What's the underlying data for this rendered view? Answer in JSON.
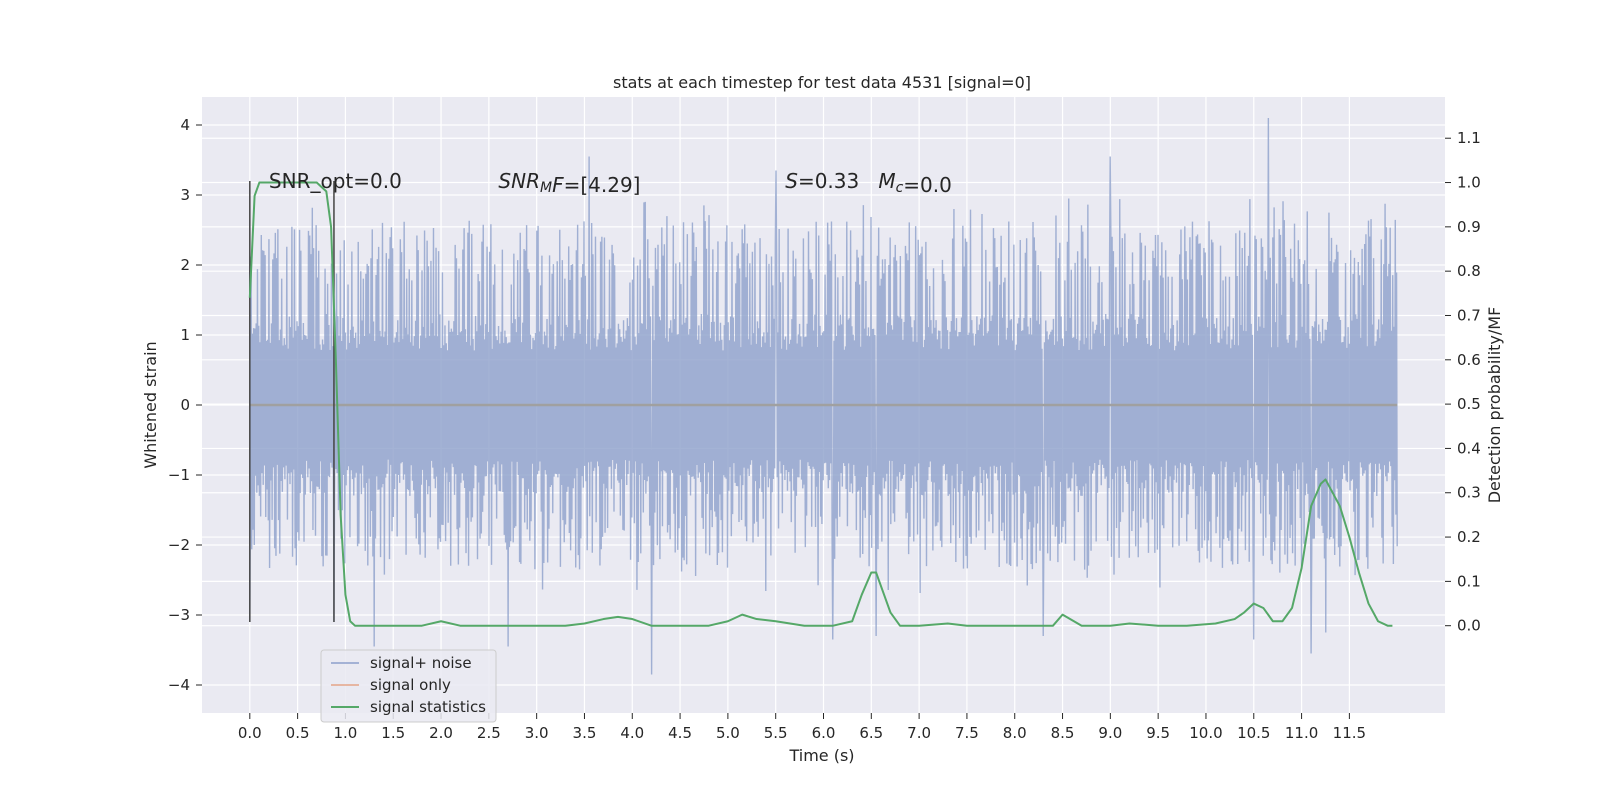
{
  "chart_data": {
    "type": "line",
    "title": "stats at each timestep for test data 4531 [signal=0]",
    "xlabel": "Time (s)",
    "ylabel_left": "Whitened strain",
    "ylabel_right": "Detection probability/MF",
    "xlim": [
      -0.5,
      12.5
    ],
    "ylim_left": [
      -4.4,
      4.4
    ],
    "ylim_right": [
      -0.197,
      1.193
    ],
    "x_ticks": [
      0.0,
      0.5,
      1.0,
      1.5,
      2.0,
      2.5,
      3.0,
      3.5,
      4.0,
      4.5,
      5.0,
      5.5,
      6.0,
      6.5,
      7.0,
      7.5,
      8.0,
      8.5,
      9.0,
      9.5,
      10.0,
      10.5,
      11.0,
      11.5
    ],
    "x_tick_labels": [
      "0.0",
      "0.5",
      "1.0",
      "1.5",
      "2.0",
      "2.5",
      "3.0",
      "3.5",
      "4.0",
      "4.5",
      "5.0",
      "5.5",
      "6.0",
      "6.5",
      "7.0",
      "7.5",
      "8.0",
      "8.5",
      "9.0",
      "9.5",
      "10.0",
      "10.5",
      "11.0",
      "11.5"
    ],
    "y_left_ticks": [
      -4,
      -3,
      -2,
      -1,
      0,
      1,
      2,
      3,
      4
    ],
    "y_left_tick_labels": [
      "−4",
      "−3",
      "−2",
      "−1",
      "0",
      "1",
      "2",
      "3",
      "4"
    ],
    "y_right_ticks": [
      0.0,
      0.1,
      0.2,
      0.3,
      0.4,
      0.5,
      0.6,
      0.7,
      0.8,
      0.9,
      1.0,
      1.1
    ],
    "y_right_tick_labels": [
      "0.0",
      "0.1",
      "0.2",
      "0.3",
      "0.4",
      "0.5",
      "0.6",
      "0.7",
      "0.8",
      "0.9",
      "1.0",
      "1.1"
    ],
    "grid": true,
    "legend_position": "lower-left",
    "series": [
      {
        "name": "signal+ noise",
        "axis": "left",
        "color": "#8da0cb",
        "x_range": [
          0.0,
          12.0
        ],
        "samples": 1800,
        "envelope": {
          "core_amplitude": 1.3,
          "typical_peak_high": [
            1.7,
            2.8
          ],
          "typical_peak_low": [
            -1.5,
            -2.5
          ],
          "max": 4.1,
          "min": -3.85
        },
        "notable_spikes": [
          {
            "x": 0.0,
            "y": -3.1
          },
          {
            "x": 0.88,
            "y": -3.1
          },
          {
            "x": 1.3,
            "y": -3.45
          },
          {
            "x": 2.7,
            "y": -3.45
          },
          {
            "x": 3.55,
            "y": 3.55
          },
          {
            "x": 4.2,
            "y": -3.85
          },
          {
            "x": 5.5,
            "y": 3.35
          },
          {
            "x": 6.1,
            "y": -3.35
          },
          {
            "x": 6.55,
            "y": -3.3
          },
          {
            "x": 8.3,
            "y": -3.3
          },
          {
            "x": 9.0,
            "y": 3.55
          },
          {
            "x": 10.5,
            "y": -3.35
          },
          {
            "x": 10.65,
            "y": 4.1
          },
          {
            "x": 11.1,
            "y": -3.55
          },
          {
            "x": 11.25,
            "y": -3.25
          }
        ]
      },
      {
        "name": "signal only",
        "axis": "left",
        "color": "#e5a588",
        "x": [
          0.0,
          12.0
        ],
        "y": [
          0.0,
          0.0
        ]
      },
      {
        "name": "signal statistics",
        "axis": "right",
        "color": "#55a868",
        "x": [
          0.0,
          0.05,
          0.1,
          0.15,
          0.2,
          0.3,
          0.4,
          0.5,
          0.6,
          0.7,
          0.75,
          0.8,
          0.85,
          0.9,
          0.95,
          1.0,
          1.05,
          1.1,
          1.2,
          1.5,
          1.8,
          2.0,
          2.2,
          2.5,
          3.0,
          3.3,
          3.5,
          3.7,
          3.85,
          4.0,
          4.2,
          4.5,
          4.8,
          5.0,
          5.15,
          5.3,
          5.5,
          5.8,
          6.1,
          6.3,
          6.4,
          6.5,
          6.55,
          6.6,
          6.7,
          6.8,
          6.9,
          7.0,
          7.3,
          7.5,
          8.0,
          8.4,
          8.5,
          8.7,
          9.0,
          9.2,
          9.5,
          9.8,
          10.1,
          10.3,
          10.4,
          10.5,
          10.6,
          10.7,
          10.8,
          10.9,
          11.0,
          11.1,
          11.2,
          11.25,
          11.3,
          11.4,
          11.5,
          11.6,
          11.7,
          11.8,
          11.9,
          11.95
        ],
        "y": [
          0.74,
          0.97,
          1.0,
          1.0,
          1.0,
          1.0,
          1.0,
          1.0,
          1.0,
          1.0,
          0.99,
          0.98,
          0.9,
          0.6,
          0.25,
          0.07,
          0.01,
          0.0,
          0.0,
          0.0,
          0.0,
          0.01,
          0.0,
          0.0,
          0.0,
          0.0,
          0.005,
          0.015,
          0.02,
          0.015,
          0.0,
          0.0,
          0.0,
          0.01,
          0.025,
          0.015,
          0.01,
          0.0,
          0.0,
          0.01,
          0.07,
          0.12,
          0.12,
          0.09,
          0.03,
          0.0,
          0.0,
          0.0,
          0.005,
          0.0,
          0.0,
          0.0,
          0.025,
          0.0,
          0.0,
          0.005,
          0.0,
          0.0,
          0.005,
          0.015,
          0.03,
          0.05,
          0.04,
          0.01,
          0.01,
          0.04,
          0.13,
          0.27,
          0.32,
          0.33,
          0.31,
          0.27,
          0.2,
          0.12,
          0.05,
          0.01,
          0.0,
          0.0
        ]
      }
    ],
    "vertical_lines": [
      0.0,
      0.88
    ],
    "annotations": [
      {
        "text": "SNR_opt=0.0",
        "x": 0.2,
        "y": 3.1
      },
      {
        "text_parts": [
          {
            "t": "SNR",
            "italic": true
          },
          {
            "t": "M",
            "italic": true,
            "sub": true
          },
          {
            "t": "F",
            "italic": true
          },
          {
            "t": "=[4.29]"
          }
        ],
        "x": 2.6,
        "y": 3.1
      },
      {
        "text_parts": [
          {
            "t": "S",
            "italic": true
          },
          {
            "t": "=0.33"
          },
          {
            "t": "   "
          },
          {
            "t": "M",
            "italic": true
          },
          {
            "t": "c",
            "italic": true,
            "sub": true
          },
          {
            "t": "=0.0"
          }
        ],
        "x": 5.6,
        "y": 3.1
      }
    ]
  }
}
